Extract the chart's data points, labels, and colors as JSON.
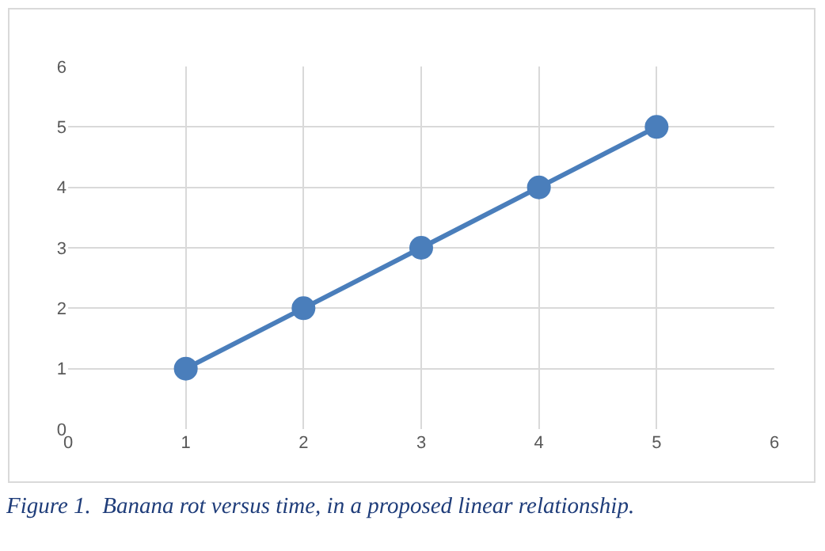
{
  "chart_data": {
    "type": "line",
    "x": [
      1,
      2,
      3,
      4,
      5
    ],
    "series": [
      {
        "color": "#4a7ebb",
        "values": [
          1,
          2,
          3,
          4,
          5
        ]
      }
    ],
    "xlim": [
      0,
      6
    ],
    "xticks": [
      0,
      1,
      2,
      3,
      4,
      5,
      6
    ],
    "ylim": [
      0,
      6
    ],
    "yticks": [
      0,
      1,
      2,
      3,
      4,
      5,
      6
    ],
    "grid": true,
    "legend": false,
    "marker": "circle",
    "line_style": "solid",
    "annotations": [
      "Figure 1.  Banana rot versus time, in a proposed linear relationship."
    ]
  }
}
